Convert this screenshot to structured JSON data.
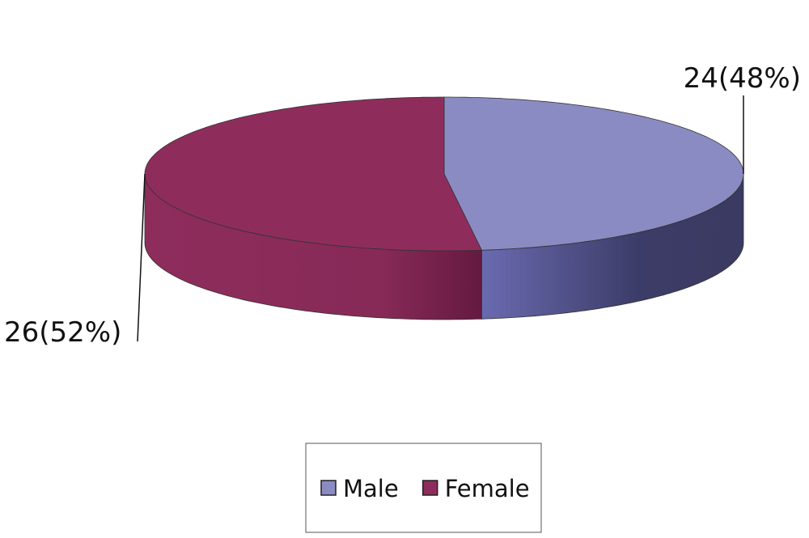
{
  "chart_data": {
    "type": "pie",
    "categories": [
      "Male",
      "Female"
    ],
    "values": [
      24,
      26
    ],
    "value_labels": [
      "24(48%)",
      "26(52%)"
    ],
    "colors": [
      "#8b8bc3",
      "#8e2d5c"
    ],
    "legend": "bottom"
  }
}
